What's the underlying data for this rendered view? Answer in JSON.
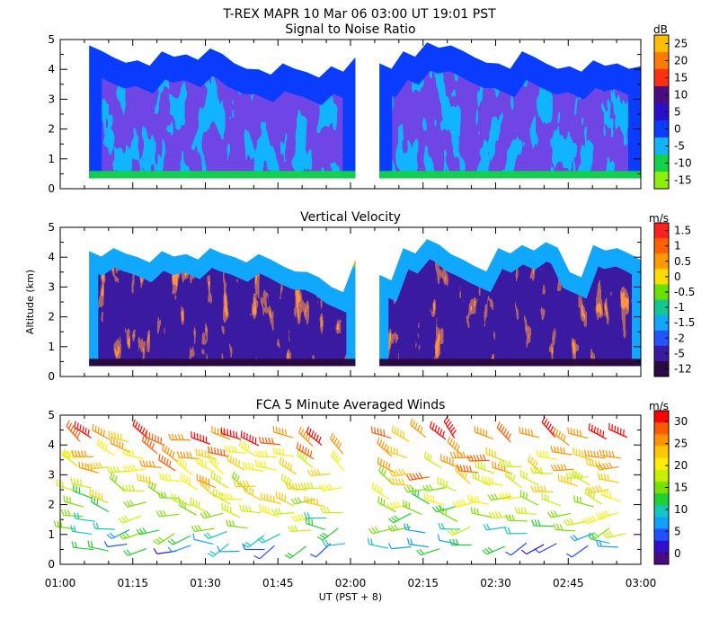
{
  "chart_data": {
    "header": {
      "line1": "T-REX   MAPR 10 Mar 06   03:00 UT   19:01   PST"
    },
    "x_axis": {
      "label": "UT  (PST + 8)",
      "ticks": [
        "01:00",
        "01:15",
        "01:30",
        "01:45",
        "02:00",
        "02:15",
        "02:30",
        "02:45",
        "03:00"
      ],
      "range_minutes": [
        60,
        180
      ],
      "data_gap_minutes": [
        121,
        122
      ]
    },
    "y_axis_label": "Altitude (km)",
    "y_ticks": [
      "0",
      "1",
      "2",
      "3",
      "4",
      "5"
    ],
    "panels": [
      {
        "id": "snr",
        "type": "heatmap",
        "title": "Signal to Noise Ratio",
        "units": "dB",
        "ylim": [
          0,
          5
        ],
        "colorbar_ticks": [
          "25",
          "20",
          "15",
          "10",
          "5",
          "0",
          "-5",
          "-10",
          "-15"
        ],
        "colorbar_colors": [
          "#ffbf00",
          "#ff7a00",
          "#ff3010",
          "#4b0d80",
          "#2a10c8",
          "#0a3cff",
          "#10b4ff",
          "#12d24a",
          "#8cf00a"
        ],
        "cloud_top_km": [
          4.8,
          4.4,
          4.3,
          4.6,
          4.5,
          4.7,
          4.2,
          4.0,
          4.2,
          3.9,
          4.1,
          4.4,
          4.2,
          4.6,
          4.9,
          4.8,
          4.4,
          4.2,
          4.6,
          4.2,
          4.1,
          4.3,
          4.2,
          4.1
        ],
        "cloud_base_km": 0.35
      },
      {
        "id": "vv",
        "type": "heatmap",
        "title": "Vertical Velocity",
        "units": "m/s",
        "ylim": [
          0,
          5
        ],
        "colorbar_ticks": [
          "1.5",
          "1",
          "0.5",
          "0",
          "-0.5",
          "-1",
          "-1.5",
          "-2",
          "-5",
          "-12"
        ],
        "colorbar_colors": [
          "#ff2020",
          "#ff6000",
          "#ff9a00",
          "#ffdc00",
          "#6ae000",
          "#10c890",
          "#10a8ff",
          "#2255ff",
          "#3a1aa0",
          "#2a0a40"
        ],
        "echo_top_km": [
          4.2,
          4.3,
          4.0,
          4.2,
          4.1,
          4.3,
          4.0,
          4.1,
          3.7,
          3.5,
          3.0,
          3.9,
          3.4,
          4.3,
          4.6,
          4.1,
          3.7,
          4.3,
          4.4,
          4.5,
          3.5,
          4.4,
          4.3,
          3.9
        ],
        "echo_base_km": 0.35
      },
      {
        "id": "winds",
        "type": "barbs",
        "title": "FCA 5 Minute Averaged Winds",
        "units": "m/s",
        "ylim": [
          0,
          5
        ],
        "colorbar_ticks": [
          "30",
          "25",
          "20",
          "15",
          "10",
          "5",
          "0"
        ],
        "colorbar_colors": [
          "#ff0000",
          "#ff5a00",
          "#ff9400",
          "#ffc800",
          "#ffee00",
          "#c8f000",
          "#7ae000",
          "#20d030",
          "#10c8c0",
          "#10a0ff",
          "#2050ff",
          "#3010c8",
          "#4a0a80"
        ],
        "barb_levels_km": [
          0.6,
          1.1,
          1.6,
          2.1,
          2.6,
          3.1,
          3.6,
          4.1
        ],
        "speed_by_level_ms": [
          8,
          12,
          15,
          18,
          20,
          22,
          24,
          28
        ],
        "direction_by_level_deg": [
          255,
          260,
          270,
          280,
          285,
          290,
          295,
          300
        ]
      }
    ]
  }
}
